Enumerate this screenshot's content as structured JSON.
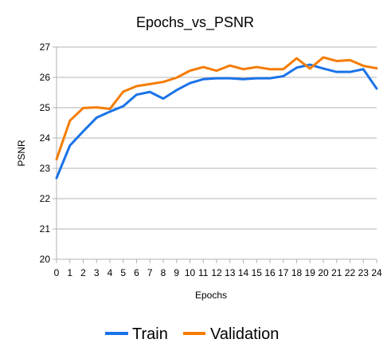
{
  "chart_data": {
    "type": "line",
    "title": "Epochs_vs_PSNR",
    "xlabel": "Epochs",
    "ylabel": "PSNR",
    "x": [
      0,
      1,
      2,
      3,
      4,
      5,
      6,
      7,
      8,
      9,
      10,
      11,
      12,
      13,
      14,
      15,
      16,
      17,
      18,
      19,
      20,
      21,
      22,
      23,
      24
    ],
    "xlim": [
      0,
      24
    ],
    "ylim": [
      20,
      27
    ],
    "yticks": [
      20,
      21,
      22,
      23,
      24,
      25,
      26,
      27
    ],
    "grid": "horizontal",
    "legend": "bottom",
    "series": [
      {
        "name": "Train",
        "color": "#1a73e8",
        "values": [
          22.68,
          23.75,
          24.22,
          24.67,
          24.87,
          25.05,
          25.43,
          25.52,
          25.3,
          25.58,
          25.81,
          25.94,
          25.97,
          25.97,
          25.94,
          25.97,
          25.97,
          26.04,
          26.32,
          26.42,
          26.29,
          26.18,
          26.18,
          26.27,
          25.63
        ]
      },
      {
        "name": "Validation",
        "color": "#f57c00",
        "values": [
          23.3,
          24.57,
          24.99,
          25.01,
          24.96,
          25.53,
          25.71,
          25.78,
          25.85,
          25.99,
          26.22,
          26.34,
          26.22,
          26.39,
          26.27,
          26.34,
          26.27,
          26.27,
          26.63,
          26.29,
          26.66,
          26.54,
          26.57,
          26.38,
          26.3
        ]
      }
    ]
  }
}
